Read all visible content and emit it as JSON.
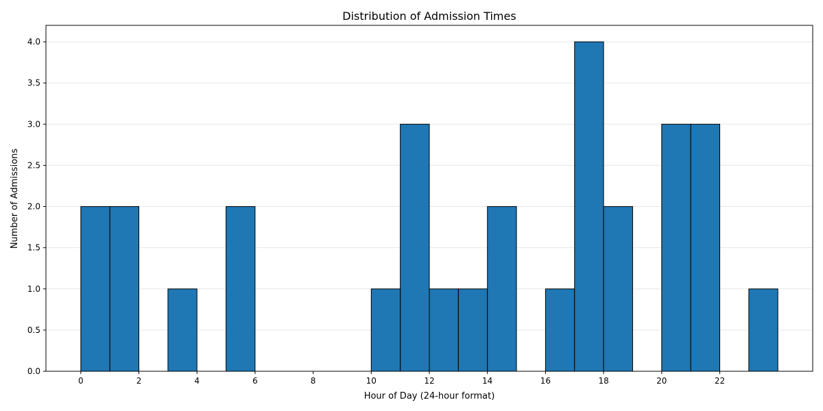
{
  "chart_data": {
    "type": "bar",
    "title": "Distribution of Admission Times",
    "xlabel": "Hour of Day (24-hour format)",
    "ylabel": "Number of Admissions",
    "xlim": [
      -1.2,
      25.2
    ],
    "ylim": [
      0,
      4.2
    ],
    "xticks": [
      0,
      2,
      4,
      6,
      8,
      10,
      12,
      14,
      16,
      18,
      20,
      22
    ],
    "xtick_labels": [
      "0",
      "2",
      "4",
      "6",
      "8",
      "10",
      "12",
      "14",
      "16",
      "18",
      "20",
      "22"
    ],
    "yticks": [
      0,
      0.5,
      1,
      1.5,
      2,
      2.5,
      3,
      3.5,
      4
    ],
    "ytick_labels": [
      "0.0",
      "0.5",
      "1.0",
      "1.5",
      "2.0",
      "2.5",
      "3.0",
      "3.5",
      "4.0"
    ],
    "bin_edges": [
      0,
      1,
      2,
      3,
      4,
      5,
      6,
      7,
      8,
      9,
      10,
      11,
      12,
      13,
      14,
      15,
      16,
      17,
      18,
      19,
      20,
      21,
      22,
      23,
      24
    ],
    "values": [
      2,
      2,
      0,
      1,
      0,
      2,
      0,
      0,
      0,
      0,
      1,
      3,
      1,
      1,
      2,
      0,
      1,
      4,
      2,
      0,
      3,
      3,
      0,
      1
    ],
    "bar_color": "#1f77b4",
    "edge_color": "#000000",
    "grid": "y-axis, light"
  }
}
